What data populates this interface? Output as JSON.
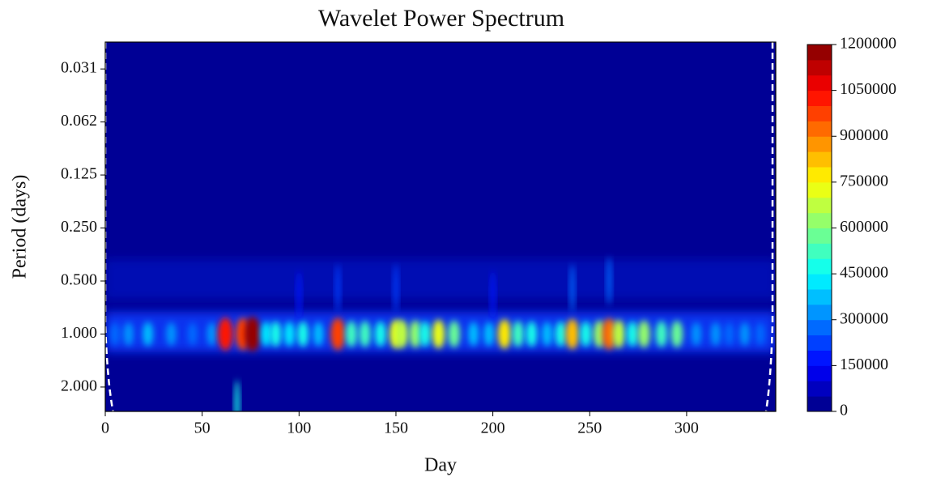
{
  "chart_data": {
    "type": "heatmap",
    "title": "Wavelet Power Spectrum",
    "xlabel": "Day",
    "ylabel": "Period (days)",
    "xlim": [
      0,
      346
    ],
    "xticks": [
      0,
      50,
      100,
      150,
      200,
      250,
      300
    ],
    "ylim": [
      0.022,
      2.75
    ],
    "yscale": "log",
    "yinverted": true,
    "yticks": [
      {
        "value": 0.03125,
        "label": "0.031"
      },
      {
        "value": 0.0625,
        "label": "0.062"
      },
      0.125,
      {
        "value": 0.25,
        "label": "0.250"
      },
      {
        "value": 0.5,
        "label": "0.500"
      },
      {
        "value": 1,
        "label": "1.000"
      },
      {
        "value": 2,
        "label": "2.000"
      }
    ],
    "colormap": "jet",
    "clim": [
      0,
      1200000
    ],
    "cticks": [
      0,
      150000,
      300000,
      450000,
      600000,
      750000,
      900000,
      1050000,
      1200000
    ],
    "levels": 24,
    "hotspots": {
      "day": [
        5,
        12,
        22,
        34,
        45,
        55,
        62,
        71,
        76,
        83,
        88,
        95,
        102,
        110,
        120,
        127,
        134,
        142,
        150,
        153,
        160,
        165,
        172,
        180,
        190,
        198,
        206,
        213,
        220,
        228,
        235,
        241,
        248,
        255,
        260,
        265,
        272,
        278,
        287,
        295,
        305,
        315,
        322,
        330,
        338,
        68,
        120,
        150,
        241,
        260,
        100,
        200
      ],
      "period": [
        1,
        1,
        1,
        1,
        1,
        1,
        1,
        1,
        1,
        1,
        1,
        1,
        1,
        1,
        1,
        1,
        1,
        1,
        1,
        1,
        1,
        1,
        1,
        1,
        1,
        1,
        1,
        1,
        1,
        1,
        1,
        1,
        1,
        1,
        1,
        1,
        1,
        1,
        1,
        1,
        1,
        1,
        1,
        1,
        1,
        2.5,
        0.55,
        0.55,
        0.55,
        0.5,
        0.6,
        0.6
      ],
      "power": [
        250000,
        300000,
        350000,
        300000,
        250000,
        300000,
        1000000,
        950000,
        1150000,
        400000,
        450000,
        400000,
        450000,
        350000,
        950000,
        500000,
        500000,
        450000,
        700000,
        650000,
        600000,
        450000,
        700000,
        550000,
        350000,
        350000,
        750000,
        500000,
        450000,
        350000,
        450000,
        800000,
        450000,
        600000,
        900000,
        650000,
        450000,
        600000,
        500000,
        550000,
        300000,
        300000,
        250000,
        300000,
        250000,
        450000,
        200000,
        200000,
        250000,
        250000,
        150000,
        150000
      ]
    }
  }
}
